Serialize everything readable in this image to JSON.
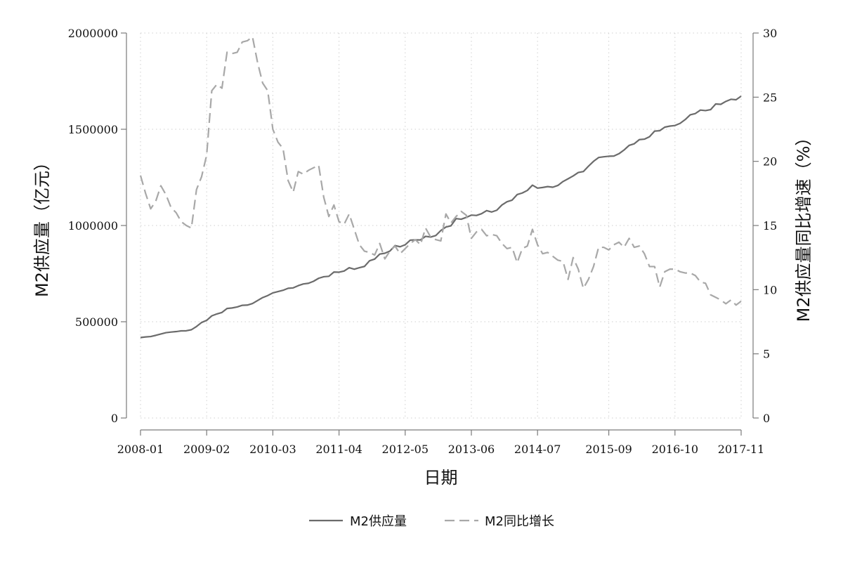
{
  "chart_data": {
    "type": "line",
    "xlabel": "日期",
    "ylabel_left": "M2供应量（亿元）",
    "ylabel_right": "M2供应量同比增速（%）",
    "x_tick_labels": [
      "2008-01",
      "2009-02",
      "2010-03",
      "2011-04",
      "2012-05",
      "2013-06",
      "2014-07",
      "2015-09",
      "2016-10",
      "2017-11"
    ],
    "y_left_ticks": [
      "0",
      "500000",
      "1000000",
      "1500000",
      "2000000"
    ],
    "y_right_ticks": [
      "0",
      "5",
      "10",
      "15",
      "20",
      "25",
      "30"
    ],
    "ylim_left": [
      0,
      2000000
    ],
    "ylim_right": [
      0,
      30
    ],
    "grid": true,
    "legend_position": "bottom",
    "x": [
      "2008-01",
      "2008-02",
      "2008-03",
      "2008-04",
      "2008-05",
      "2008-06",
      "2008-07",
      "2008-08",
      "2008-09",
      "2008-10",
      "2008-11",
      "2008-12",
      "2009-01",
      "2009-02",
      "2009-03",
      "2009-04",
      "2009-05",
      "2009-06",
      "2009-07",
      "2009-08",
      "2009-09",
      "2009-10",
      "2009-11",
      "2009-12",
      "2010-01",
      "2010-02",
      "2010-03",
      "2010-04",
      "2010-05",
      "2010-06",
      "2010-07",
      "2010-08",
      "2010-09",
      "2010-10",
      "2010-11",
      "2010-12",
      "2011-01",
      "2011-02",
      "2011-03",
      "2011-04",
      "2011-05",
      "2011-06",
      "2011-07",
      "2011-08",
      "2011-09",
      "2011-10",
      "2011-11",
      "2011-12",
      "2012-01",
      "2012-02",
      "2012-03",
      "2012-04",
      "2012-05",
      "2012-06",
      "2012-07",
      "2012-08",
      "2012-09",
      "2012-10",
      "2012-11",
      "2012-12",
      "2013-01",
      "2013-02",
      "2013-03",
      "2013-04",
      "2013-05",
      "2013-06",
      "2013-07",
      "2013-08",
      "2013-09",
      "2013-10",
      "2013-11",
      "2013-12",
      "2014-01",
      "2014-02",
      "2014-03",
      "2014-04",
      "2014-05",
      "2014-06",
      "2014-07",
      "2014-08",
      "2014-09",
      "2014-10",
      "2014-11",
      "2014-12",
      "2015-01",
      "2015-02",
      "2015-03",
      "2015-04",
      "2015-05",
      "2015-06",
      "2015-07",
      "2015-08",
      "2015-09",
      "2015-10",
      "2015-11",
      "2015-12",
      "2016-01",
      "2016-02",
      "2016-03",
      "2016-04",
      "2016-05",
      "2016-06",
      "2016-07",
      "2016-08",
      "2016-09",
      "2016-10",
      "2016-11",
      "2016-12",
      "2017-01",
      "2017-02",
      "2017-03",
      "2017-04",
      "2017-05",
      "2017-06",
      "2017-07",
      "2017-08",
      "2017-09",
      "2017-10",
      "2017-11"
    ],
    "series": [
      {
        "name": "M2供应量",
        "axis": "left",
        "style": "solid",
        "color": "#6b6b6b",
        "values": [
          417800,
          421000,
          423100,
          429300,
          436200,
          443100,
          446300,
          448800,
          452500,
          453100,
          458500,
          475200,
          496100,
          507200,
          530600,
          540500,
          548300,
          568900,
          571600,
          576700,
          585400,
          586600,
          594600,
          610200,
          625600,
          636100,
          649900,
          656600,
          663400,
          673900,
          675900,
          687600,
          696500,
          699800,
          710300,
          725800,
          733900,
          736100,
          758100,
          757400,
          763400,
          780800,
          772900,
          780900,
          787400,
          816800,
          825500,
          851600,
          855900,
          867200,
          895600,
          889600,
          900000,
          924100,
          925300,
          924900,
          943700,
          940200,
          947600,
          974100,
          992100,
          998600,
          1035800,
          1032600,
          1042200,
          1054000,
          1052200,
          1061300,
          1077400,
          1070200,
          1079300,
          1106500,
          1123500,
          1131800,
          1160700,
          1168800,
          1182300,
          1209600,
          1194200,
          1197500,
          1202100,
          1198900,
          1208200,
          1228400,
          1242700,
          1257400,
          1275300,
          1280300,
          1308000,
          1333400,
          1353200,
          1356900,
          1359800,
          1361000,
          1373000,
          1392300,
          1416300,
          1424600,
          1446200,
          1448600,
          1461100,
          1490500,
          1492400,
          1510900,
          1516400,
          1519500,
          1530400,
          1550100,
          1575200,
          1581600,
          1599600,
          1597000,
          1601900,
          1631300,
          1629600,
          1644700,
          1655700,
          1653400,
          1672000
        ]
      },
      {
        "name": "M2同比增长",
        "axis": "right",
        "style": "dashed",
        "color": "#a8a8a8",
        "values": [
          18.9,
          17.5,
          16.3,
          16.9,
          18.1,
          17.4,
          16.4,
          16.0,
          15.3,
          15.0,
          14.8,
          17.8,
          18.8,
          20.5,
          25.5,
          26.0,
          25.7,
          28.5,
          28.4,
          28.5,
          29.3,
          29.4,
          29.7,
          27.7,
          26.1,
          25.5,
          22.5,
          21.5,
          21.0,
          18.5,
          17.6,
          19.2,
          19.0,
          19.3,
          19.5,
          19.7,
          17.2,
          15.7,
          16.6,
          15.3,
          15.1,
          15.9,
          14.7,
          13.5,
          13.0,
          12.9,
          12.7,
          13.6,
          12.4,
          13.0,
          13.4,
          12.8,
          13.2,
          13.6,
          13.9,
          13.5,
          14.8,
          14.1,
          13.9,
          13.8,
          15.9,
          15.2,
          15.7,
          16.1,
          15.8,
          14.0,
          14.5,
          14.7,
          14.2,
          14.3,
          14.2,
          13.6,
          13.2,
          13.3,
          12.1,
          13.2,
          13.4,
          14.7,
          13.5,
          12.8,
          12.9,
          12.6,
          12.3,
          12.2,
          10.8,
          12.5,
          11.6,
          10.1,
          10.8,
          11.8,
          13.3,
          13.3,
          13.1,
          13.5,
          13.7,
          13.3,
          14.0,
          13.3,
          13.4,
          12.8,
          11.8,
          11.8,
          10.2,
          11.4,
          11.6,
          11.6,
          11.4,
          11.3,
          11.3,
          11.1,
          10.6,
          10.5,
          9.6,
          9.4,
          9.2,
          8.9,
          9.2,
          8.8,
          9.1
        ]
      }
    ]
  },
  "legend": {
    "items": [
      {
        "label": "M2供应量",
        "style": "solid",
        "color": "#6b6b6b"
      },
      {
        "label": "M2同比增长",
        "style": "dashed",
        "color": "#a8a8a8"
      }
    ]
  },
  "colors": {
    "axis": "#7a7a7a",
    "grid": "#cfcfcf",
    "text": "#111111"
  }
}
